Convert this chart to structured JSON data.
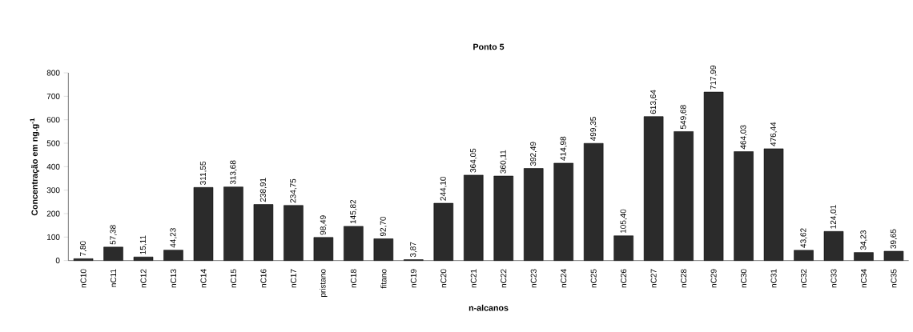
{
  "chart_data": {
    "type": "bar",
    "title": "Ponto 5",
    "xlabel": "n-alcanos",
    "ylabel": "Concentração em ng.g$^{-1}$",
    "categories": [
      "nC10",
      "nC11",
      "nC12",
      "nC13",
      "nC14",
      "nC15",
      "nC16",
      "nC17",
      "pristano",
      "nC18",
      "fitano",
      "nC19",
      "nC20",
      "nC21",
      "nC22",
      "nC23",
      "nC24",
      "nC25",
      "nC26",
      "nC27",
      "nC28",
      "nC29",
      "nC30",
      "nC31",
      "nC32",
      "nC33",
      "nC34",
      "nC35"
    ],
    "values": [
      7.8,
      57.38,
      15.11,
      44.23,
      311.55,
      313.68,
      238.91,
      234.75,
      98.49,
      145.82,
      92.7,
      3.87,
      244.1,
      364.05,
      360.11,
      392.49,
      414.98,
      499.35,
      105.4,
      613.64,
      549.68,
      717.99,
      464.03,
      476.44,
      43.62,
      124.01,
      34.23,
      39.65
    ],
    "value_labels": [
      "7,80",
      "57,38",
      "15,11",
      "44,23",
      "311,55",
      "313,68",
      "238,91",
      "234,75",
      "98,49",
      "145,82",
      "92,70",
      "3,87",
      "244,10",
      "364,05",
      "360,11",
      "392,49",
      "414,98",
      "499,35",
      "105,40",
      "613,64",
      "549,68",
      "717,99",
      "464,03",
      "476,44",
      "43,62",
      "124,01",
      "34,23",
      "39,65"
    ],
    "color": "#2b2b2b",
    "ylim": [
      0,
      800
    ],
    "yticks": [
      0,
      100,
      200,
      300,
      400,
      500,
      600,
      700,
      800
    ],
    "grid": false
  }
}
